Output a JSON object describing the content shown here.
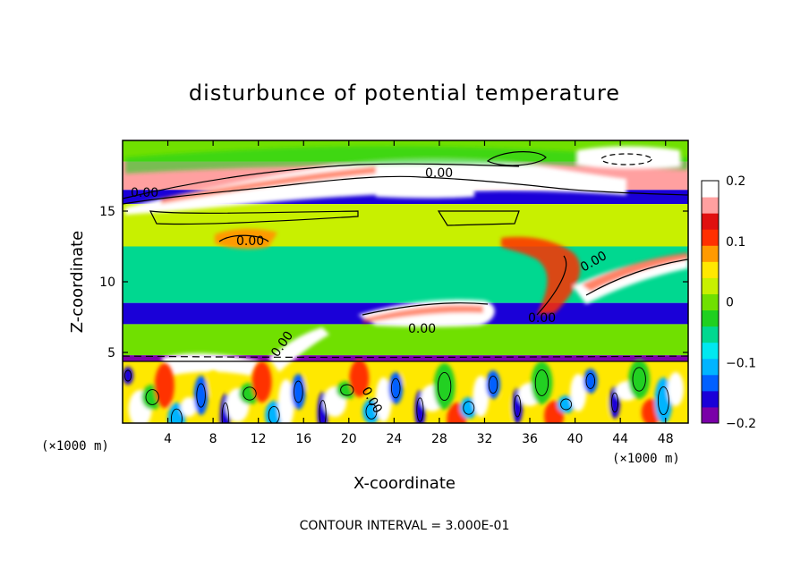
{
  "chart_data": {
    "type": "heatmap",
    "title": "disturbunce of potential temperature",
    "xlabel": "X-coordinate",
    "ylabel": "Z-coordinate",
    "x_unit": "(×1000 m)",
    "y_unit": "(×1000 m)",
    "xlim": [
      0,
      50
    ],
    "ylim": [
      0,
      20
    ],
    "x_ticks": [
      4,
      8,
      12,
      16,
      20,
      24,
      28,
      32,
      36,
      40,
      44,
      48
    ],
    "y_ticks": [
      5,
      10,
      15
    ],
    "colorbar": {
      "min": -0.2,
      "max": 0.2,
      "ticks": [
        0.2,
        0.1,
        0,
        -0.1,
        -0.2
      ],
      "tick_labels": [
        "0.2",
        "0.1",
        "0",
        "−0.1",
        "−0.2"
      ],
      "colors": [
        "#7a00a8",
        "#1a00d8",
        "#0060ff",
        "#00b4ff",
        "#00e8f0",
        "#00d890",
        "#20d020",
        "#70e000",
        "#c8f000",
        "#ffe800",
        "#ff9a00",
        "#ff3000",
        "#e01010",
        "#ffa0a0",
        "#ffffff"
      ]
    },
    "contour_label": "0.00",
    "contour_interval_text": "CONTOUR INTERVAL = 3.000E-01",
    "bands": [
      {
        "z_from": 18.5,
        "z_to": 20,
        "value": 0.0
      },
      {
        "z_from": 16.5,
        "z_to": 18.5,
        "value": 0.15
      },
      {
        "z_from": 15.5,
        "z_to": 16.5,
        "value": -0.15
      },
      {
        "z_from": 12.5,
        "z_to": 15.5,
        "value": 0.02
      },
      {
        "z_from": 8.5,
        "z_to": 12.5,
        "value": -0.06
      },
      {
        "z_from": 7.0,
        "z_to": 8.5,
        "value": -0.16
      },
      {
        "z_from": 4.8,
        "z_to": 7.0,
        "value": 0.0
      },
      {
        "z_from": 4.4,
        "z_to": 4.8,
        "value": -0.18
      },
      {
        "z_from": 0,
        "z_to": 4.4,
        "value": 0.05
      }
    ]
  }
}
